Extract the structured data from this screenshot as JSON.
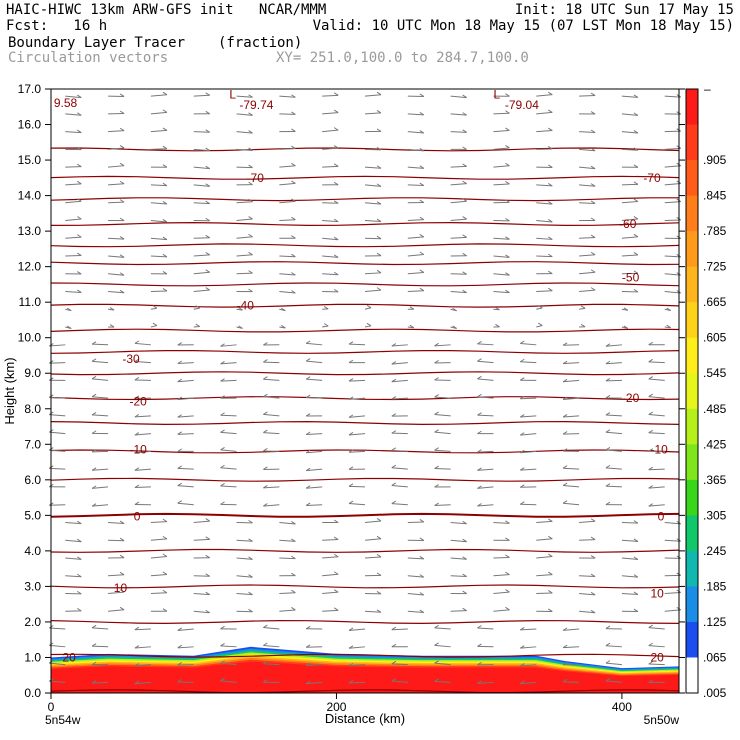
{
  "header": {
    "line1_left": "HAIC-HIWC 13km ARW-GFS init   NCAR/MMM",
    "line1_right": "Init: 18 UTC Sun 17 May 15",
    "line2_left": "Fcst:   16 h",
    "line2_right": "Valid: 10 UTC Mon 18 May 15 (07 LST Mon 18 May 15)",
    "line3_left": "Boundary Layer Tracer",
    "line3_units": "(fraction)",
    "line4_left": "Circulation vectors",
    "line4_right": "XY= 251.0,100.0 to 284.7,100.0"
  },
  "chart_data": {
    "type": "cross-section",
    "xlabel": "Distance (km)",
    "ylabel": "Height (km)",
    "xlim": [
      0,
      440
    ],
    "ylim": [
      0.0,
      17.0
    ],
    "x_ticks": [
      0,
      200,
      400
    ],
    "y_ticks": [
      0.0,
      1.0,
      2.0,
      3.0,
      4.0,
      5.0,
      6.0,
      7.0,
      8.0,
      9.0,
      10.0,
      11.0,
      12.0,
      13.0,
      14.0,
      15.0,
      16.0,
      17.0
    ],
    "x_end_labels": [
      "5n54w",
      "5n50w"
    ],
    "colorbar": {
      "top_label": "–",
      "labels": [
        ".905",
        ".845",
        ".785",
        ".725",
        ".665",
        ".605",
        ".545",
        ".485",
        ".425",
        ".365",
        ".305",
        ".245",
        ".185",
        ".125",
        ".065",
        ".005"
      ],
      "colors": [
        "#ff1a1a",
        "#ff3b1a",
        "#ff5c1a",
        "#ff7d1a",
        "#ff9a1a",
        "#ffb61a",
        "#ffd21a",
        "#ffee1a",
        "#e6f51a",
        "#b6f01a",
        "#7ee61a",
        "#3ad61a",
        "#10c86a",
        "#10b8b0",
        "#1a8ee6",
        "#1a4ef0",
        "#ffffff"
      ]
    },
    "contour_labels": [
      {
        "text": "9.58",
        "x": 2,
        "y": 16.6
      },
      {
        "text": "L",
        "x": 125,
        "y": 16.85
      },
      {
        "text": "-79.74",
        "x": 132,
        "y": 16.55
      },
      {
        "text": "L",
        "x": 310,
        "y": 16.85
      },
      {
        "text": "-79.04",
        "x": 318,
        "y": 16.55
      },
      {
        "text": "-70",
        "x": 137,
        "y": 14.5
      },
      {
        "text": "-70",
        "x": 415,
        "y": 14.5
      },
      {
        "text": "-60",
        "x": 398,
        "y": 13.2
      },
      {
        "text": "-50",
        "x": 400,
        "y": 11.7
      },
      {
        "text": "-40",
        "x": 130,
        "y": 10.9
      },
      {
        "text": "-30",
        "x": 50,
        "y": 9.4
      },
      {
        "text": "-20",
        "x": 55,
        "y": 8.2
      },
      {
        "text": "-20",
        "x": 400,
        "y": 8.3
      },
      {
        "text": "-10",
        "x": 55,
        "y": 6.85
      },
      {
        "text": "-10",
        "x": 420,
        "y": 6.85
      },
      {
        "text": "0",
        "x": 58,
        "y": 4.97
      },
      {
        "text": "0",
        "x": 425,
        "y": 4.97
      },
      {
        "text": "10",
        "x": 44,
        "y": 2.95
      },
      {
        "text": "10",
        "x": 420,
        "y": 2.8
      },
      {
        "text": "20",
        "x": 8,
        "y": 1.0
      },
      {
        "text": "20",
        "x": 420,
        "y": 1.0
      }
    ],
    "isotherm_heights": [
      0.05,
      1.05,
      2.0,
      3.0,
      4.0,
      5.0,
      6.0,
      6.8,
      7.6,
      8.3,
      9.0,
      9.6,
      10.2,
      10.9,
      11.5,
      12.1,
      12.6,
      13.2,
      13.9,
      14.5,
      15.3
    ],
    "tracer_boundary": [
      {
        "x": 0,
        "h": 1.0
      },
      {
        "x": 40,
        "h": 1.1
      },
      {
        "x": 100,
        "h": 1.05
      },
      {
        "x": 140,
        "h": 1.3
      },
      {
        "x": 200,
        "h": 1.1
      },
      {
        "x": 260,
        "h": 1.05
      },
      {
        "x": 340,
        "h": 1.05
      },
      {
        "x": 360,
        "h": 0.9
      },
      {
        "x": 400,
        "h": 0.7
      },
      {
        "x": 440,
        "h": 0.75
      }
    ],
    "wind_layers": [
      {
        "h_min": 0.0,
        "h_max": 2.2,
        "dir": "west"
      },
      {
        "h_min": 2.2,
        "h_max": 5.2,
        "dir": "east"
      },
      {
        "h_min": 5.2,
        "h_max": 10.0,
        "dir": "west"
      },
      {
        "h_min": 10.0,
        "h_max": 11.2,
        "dir": "weak"
      },
      {
        "h_min": 11.2,
        "h_max": 17.0,
        "dir": "east"
      }
    ]
  }
}
